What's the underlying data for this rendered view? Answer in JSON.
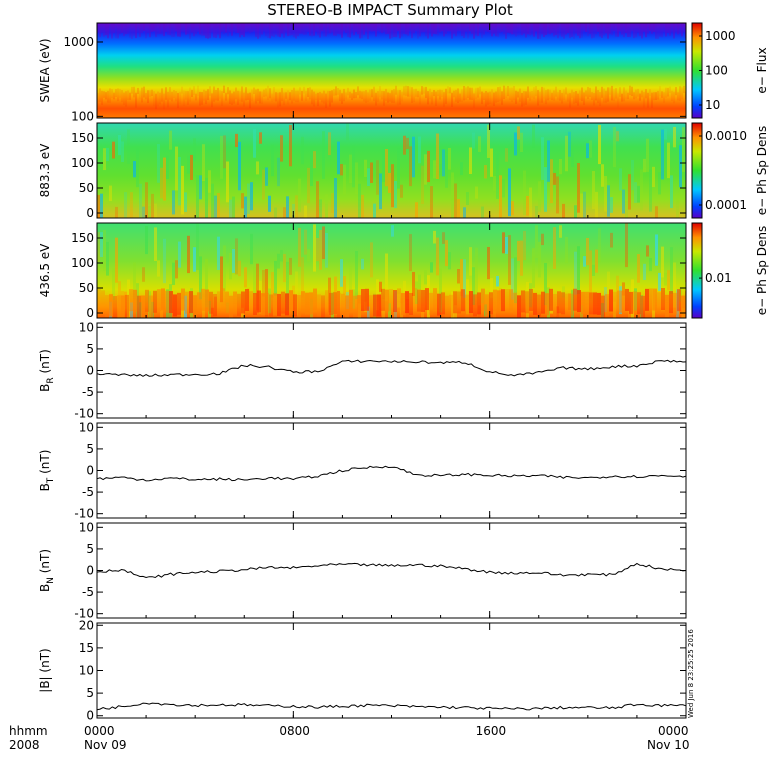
{
  "title": "STEREO-B IMPACT Summary Plot",
  "timestamp": "Wed Jun  8 23:25:25 2016",
  "footer": {
    "row1": "hhmm",
    "row2": "2008"
  },
  "colors": {
    "line": "#000000"
  },
  "chart_data": [
    {
      "type": "heatmap",
      "ylabel": "SWEA (eV)",
      "ylog": true,
      "ylim": [
        95,
        1800
      ],
      "yticks": [
        "1000",
        "100"
      ],
      "colorbar": {
        "label": "e− Flux",
        "ticks": [
          "1000",
          "100",
          "10"
        ],
        "log": true
      }
    },
    {
      "type": "heatmap",
      "ylabel": "883.3 eV",
      "ylim": [
        -10,
        180
      ],
      "yticks": [
        "150",
        "100",
        "50",
        "0"
      ],
      "colorbar": {
        "label": "e− Ph Sp Dens",
        "ticks": [
          "0.0010",
          "0.0001"
        ],
        "log": true
      }
    },
    {
      "type": "heatmap",
      "ylabel": "436.5 eV",
      "ylim": [
        -10,
        180
      ],
      "yticks": [
        "150",
        "100",
        "50",
        "0"
      ],
      "colorbar": {
        "label": "e− Ph Sp Dens",
        "ticks": [
          "0.01"
        ],
        "log": true
      }
    },
    {
      "type": "line",
      "ylabel": "B_R (nT)",
      "ylim": [
        -11,
        11
      ],
      "yticks": [
        10,
        5,
        0,
        -5,
        -10
      ],
      "x_hours": [
        0,
        1,
        2,
        3,
        4,
        5,
        6,
        7,
        8,
        9,
        10,
        11,
        12,
        13,
        14,
        15,
        16,
        17,
        18,
        19,
        20,
        21,
        22,
        23,
        24
      ],
      "values": [
        -0.8,
        -1.0,
        -1.2,
        -1.0,
        -0.9,
        -0.7,
        1.2,
        0.8,
        -0.4,
        -0.2,
        2.0,
        2.2,
        2.1,
        2.0,
        1.8,
        1.9,
        -0.3,
        -1.2,
        -0.5,
        0.6,
        0.3,
        0.9,
        1.1,
        2.3,
        2.0
      ]
    },
    {
      "type": "line",
      "ylabel": "B_T (nT)",
      "ylim": [
        -11,
        11
      ],
      "yticks": [
        10,
        5,
        0,
        -5,
        -10
      ],
      "x_hours": [
        0,
        1,
        2,
        3,
        4,
        5,
        6,
        7,
        8,
        9,
        10,
        11,
        12,
        13,
        14,
        15,
        16,
        17,
        18,
        19,
        20,
        21,
        22,
        23,
        24
      ],
      "values": [
        -1.9,
        -1.6,
        -2.2,
        -1.8,
        -2.1,
        -2.0,
        -2.2,
        -1.7,
        -2.0,
        -1.3,
        0.0,
        0.7,
        1.0,
        -1.0,
        -1.2,
        -0.9,
        -1.1,
        -1.3,
        -1.2,
        -1.6,
        -1.7,
        -1.3,
        -1.4,
        -1.2,
        -1.3
      ]
    },
    {
      "type": "line",
      "ylabel": "B_N (nT)",
      "ylim": [
        -11,
        11
      ],
      "yticks": [
        10,
        5,
        0,
        -5,
        -10
      ],
      "x_hours": [
        0,
        1,
        2,
        3,
        4,
        5,
        6,
        7,
        8,
        9,
        10,
        11,
        12,
        13,
        14,
        15,
        16,
        17,
        18,
        19,
        20,
        21,
        22,
        23,
        24
      ],
      "values": [
        -0.3,
        0.2,
        -1.8,
        -0.9,
        -0.4,
        -0.2,
        0.2,
        0.7,
        0.6,
        1.1,
        1.4,
        1.3,
        1.1,
        1.3,
        1.0,
        0.4,
        -0.4,
        -0.6,
        -0.5,
        -1.1,
        -0.9,
        -1.0,
        1.6,
        0.3,
        0.0
      ]
    },
    {
      "type": "line",
      "ylabel": "|B| (nT)",
      "ylim": [
        -0.5,
        20.5
      ],
      "yticks": [
        20,
        15,
        10,
        5,
        0
      ],
      "x_hours": [
        0,
        1,
        2,
        3,
        4,
        5,
        6,
        7,
        8,
        9,
        10,
        11,
        12,
        13,
        14,
        15,
        16,
        17,
        18,
        19,
        20,
        21,
        22,
        23,
        24
      ],
      "values": [
        1.5,
        2.0,
        2.9,
        2.5,
        2.3,
        2.4,
        2.4,
        2.2,
        2.1,
        1.9,
        2.1,
        2.3,
        2.2,
        2.0,
        1.9,
        1.8,
        1.6,
        1.5,
        1.6,
        1.8,
        1.8,
        1.7,
        2.5,
        2.3,
        2.2
      ]
    }
  ],
  "x_axis": {
    "xlim_hours": [
      0,
      24
    ],
    "ticks": [
      {
        "hour": 0,
        "line1": "0000",
        "line2": "Nov 09"
      },
      {
        "hour": 8,
        "line1": "0800",
        "line2": ""
      },
      {
        "hour": 16,
        "line1": "1600",
        "line2": ""
      },
      {
        "hour": 24,
        "line1": "0000",
        "line2": "Nov 10"
      }
    ]
  }
}
